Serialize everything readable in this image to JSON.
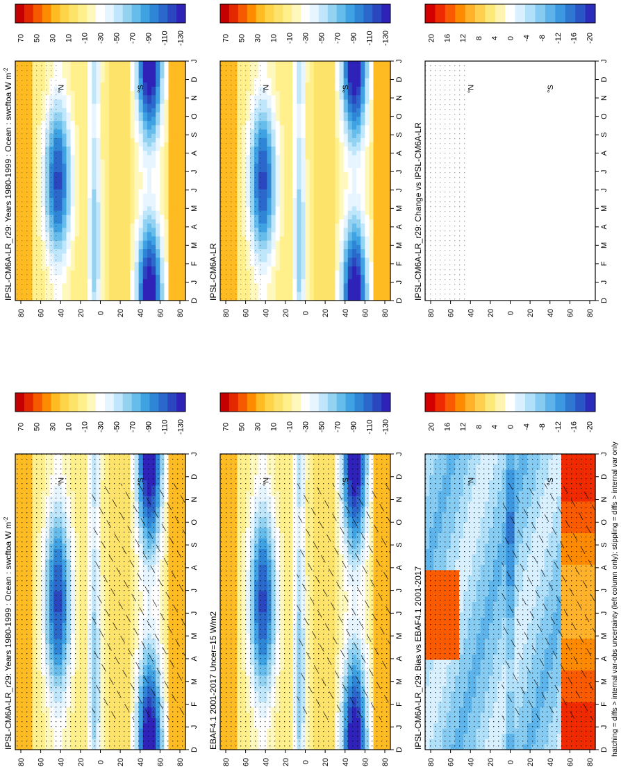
{
  "figure": {
    "footnote": "hatching = diffs > internal var-obs uncertainty (left column only); stippling = diffs > internal var only"
  },
  "colors": {
    "abs_scale": [
      "#c40000",
      "#e32800",
      "#f55a00",
      "#fd8c00",
      "#ffbb22",
      "#ffd448",
      "#fde36a",
      "#fff08c",
      "#fff8bc",
      "#ffffff",
      "#e6f5ff",
      "#bfe6fa",
      "#94d2f2",
      "#66bceb",
      "#3ea2e3",
      "#2f86d6",
      "#2a68cb",
      "#2b47bf",
      "#2f22b9"
    ],
    "diff_scale": [
      "#d40000",
      "#f02a00",
      "#fa5a00",
      "#fd8a00",
      "#ffb22a",
      "#ffd050",
      "#fde87a",
      "#fff5b0",
      "#ffffff",
      "#d8f0ff",
      "#b0e0fa",
      "#86ccf2",
      "#5cb4ea",
      "#3c98e0",
      "#2e78d2",
      "#2a55c5",
      "#2c2cbb"
    ],
    "land_blank": "#ffffff"
  },
  "chart_data": [
    {
      "id": "model",
      "type": "heatmap",
      "title": "IPSL-CM6A-LR_r29: Years 1980-1999 : Ocean : swcftoa W m",
      "title_sup": "-2",
      "xlabel": "",
      "ylabel": "",
      "x_ticks": [
        "D",
        "J",
        "F",
        "M",
        "A",
        "M",
        "J",
        "J",
        "A",
        "S",
        "O",
        "N",
        "D",
        "J"
      ],
      "y_ticks": [
        "80",
        "60",
        "40",
        "20",
        "0",
        "20",
        "40",
        "60",
        "80"
      ],
      "y_tick_suffix": [
        "",
        "",
        "°N",
        "",
        "",
        "",
        "°S",
        "",
        ""
      ],
      "colorbar_ticks": [
        "70",
        "50",
        "30",
        "10",
        "-10",
        "-30",
        "-50",
        "-70",
        "-90",
        "-110",
        "-130"
      ],
      "hatching": true,
      "stippling": true
    },
    {
      "id": "obs",
      "type": "heatmap",
      "title": "EBAF4.1 2001-2017 Uncer=15 W/m2",
      "x_ticks": [
        "D",
        "J",
        "F",
        "M",
        "A",
        "M",
        "J",
        "J",
        "A",
        "S",
        "O",
        "N",
        "D",
        "J"
      ],
      "y_ticks": [
        "80",
        "60",
        "40",
        "20",
        "0",
        "20",
        "40",
        "60",
        "80"
      ],
      "y_tick_suffix": [
        "",
        "",
        "°N",
        "",
        "",
        "",
        "°S",
        "",
        ""
      ],
      "colorbar_ticks": [
        "70",
        "50",
        "30",
        "10",
        "-10",
        "-30",
        "-50",
        "-70",
        "-90",
        "-110",
        "-130"
      ],
      "hatching": true,
      "stippling": true
    },
    {
      "id": "bias",
      "type": "heatmap",
      "title": "IPSL-CM6A-LR_r29: Bias vs EBAF4.1 2001-2017",
      "x_ticks": [
        "D",
        "J",
        "F",
        "M",
        "A",
        "M",
        "J",
        "J",
        "A",
        "S",
        "O",
        "N",
        "D",
        "J"
      ],
      "y_ticks": [
        "80",
        "60",
        "40",
        "20",
        "0",
        "20",
        "40",
        "60",
        "80"
      ],
      "y_tick_suffix": [
        "",
        "",
        "°N",
        "",
        "",
        "",
        "°S",
        "",
        ""
      ],
      "colorbar_ticks": [
        "20",
        "16",
        "12",
        "8",
        "4",
        "0",
        "-4",
        "-8",
        "-12",
        "-16",
        "-20"
      ],
      "hatching": true,
      "stippling": true
    },
    {
      "id": "model2",
      "type": "heatmap",
      "title": "IPSL-CM6A-LR_r29: Years 1980-1999 : Ocean : swcftoa W m",
      "title_sup": "-2",
      "x_ticks": [
        "D",
        "J",
        "F",
        "M",
        "A",
        "M",
        "J",
        "J",
        "A",
        "S",
        "O",
        "N",
        "D",
        "J"
      ],
      "y_ticks": [
        "80",
        "60",
        "40",
        "20",
        "0",
        "20",
        "40",
        "60",
        "80"
      ],
      "y_tick_suffix": [
        "",
        "",
        "°N",
        "",
        "",
        "",
        "°S",
        "",
        ""
      ],
      "colorbar_ticks": [
        "70",
        "50",
        "30",
        "10",
        "-10",
        "-30",
        "-50",
        "-70",
        "-90",
        "-110",
        "-130"
      ],
      "hatching": false,
      "stippling": true
    },
    {
      "id": "ref",
      "type": "heatmap",
      "title": "IPSL-CM6A-LR",
      "x_ticks": [
        "D",
        "J",
        "F",
        "M",
        "A",
        "M",
        "J",
        "J",
        "A",
        "S",
        "O",
        "N",
        "D",
        "J"
      ],
      "y_ticks": [
        "80",
        "60",
        "40",
        "20",
        "0",
        "20",
        "40",
        "60",
        "80"
      ],
      "y_tick_suffix": [
        "",
        "",
        "°N",
        "",
        "",
        "",
        "°S",
        "",
        ""
      ],
      "colorbar_ticks": [
        "70",
        "50",
        "30",
        "10",
        "-10",
        "-30",
        "-50",
        "-70",
        "-90",
        "-110",
        "-130"
      ],
      "hatching": false,
      "stippling": true
    },
    {
      "id": "change",
      "type": "heatmap",
      "title": "IPSL-CM6A-LR_r29: Change vs IPSL-CM6A-LR",
      "x_ticks": [
        "D",
        "J",
        "F",
        "M",
        "A",
        "M",
        "J",
        "J",
        "A",
        "S",
        "O",
        "N",
        "D",
        "J"
      ],
      "y_ticks": [
        "80",
        "60",
        "40",
        "20",
        "0",
        "20",
        "40",
        "60",
        "80"
      ],
      "y_tick_suffix": [
        "",
        "",
        "°N",
        "",
        "",
        "",
        "°S",
        "",
        ""
      ],
      "colorbar_ticks": [
        "20",
        "16",
        "12",
        "8",
        "4",
        "0",
        "-4",
        "-8",
        "-12",
        "-16",
        "-20"
      ],
      "hatching": false,
      "stippling": true
    }
  ]
}
